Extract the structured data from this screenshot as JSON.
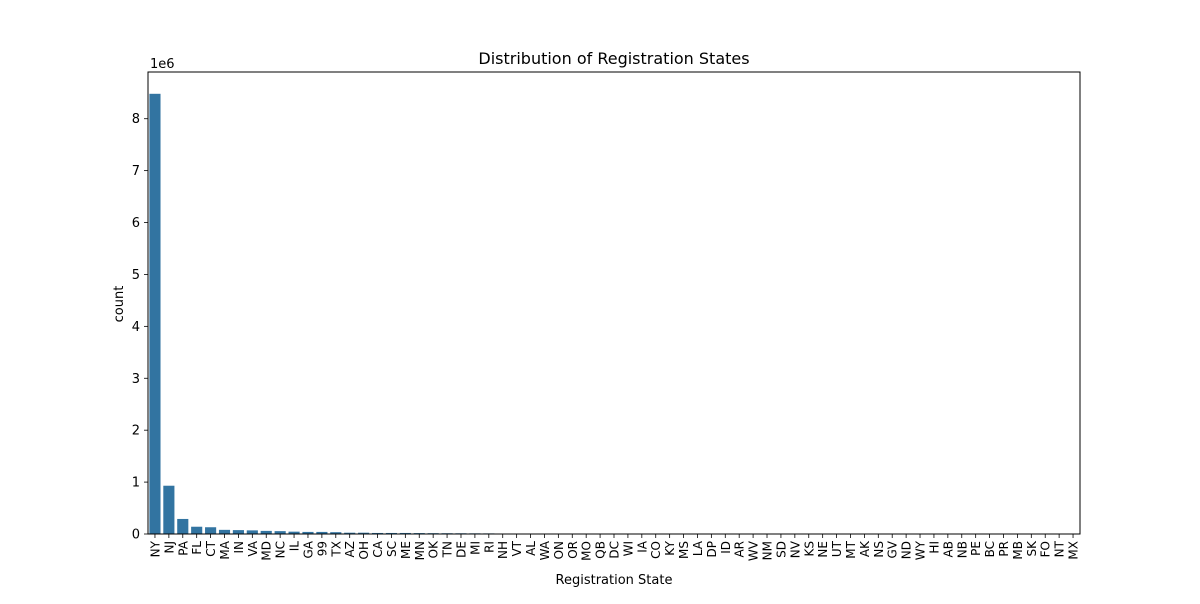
{
  "chart_data": {
    "type": "bar",
    "title": "Distribution of Registration States",
    "xlabel": "Registration State",
    "ylabel": "count",
    "y_multiplier_label": "1e6",
    "ylim": [
      0,
      8.9
    ],
    "yticks": [
      0,
      1,
      2,
      3,
      4,
      5,
      6,
      7,
      8
    ],
    "grid": false,
    "legend": "none",
    "bar_color": "#3274a1",
    "categories": [
      "NY",
      "NJ",
      "PA",
      "FL",
      "CT",
      "MA",
      "IN",
      "VA",
      "MD",
      "NC",
      "IL",
      "GA",
      "99",
      "TX",
      "AZ",
      "OH",
      "CA",
      "SC",
      "ME",
      "MN",
      "OK",
      "TN",
      "DE",
      "MI",
      "RI",
      "NH",
      "VT",
      "AL",
      "WA",
      "ON",
      "OR",
      "MO",
      "QB",
      "DC",
      "WI",
      "IA",
      "CO",
      "KY",
      "MS",
      "LA",
      "DP",
      "ID",
      "AR",
      "WV",
      "NM",
      "SD",
      "NV",
      "KS",
      "NE",
      "UT",
      "MT",
      "AK",
      "NS",
      "GV",
      "ND",
      "WY",
      "HI",
      "AB",
      "NB",
      "PE",
      "BC",
      "PR",
      "MB",
      "SK",
      "FO",
      "NT",
      "MX"
    ],
    "values": [
      8.48,
      0.93,
      0.29,
      0.14,
      0.13,
      0.08,
      0.075,
      0.07,
      0.06,
      0.055,
      0.045,
      0.04,
      0.04,
      0.035,
      0.025,
      0.025,
      0.02,
      0.02,
      0.02,
      0.018,
      0.016,
      0.015,
      0.014,
      0.013,
      0.012,
      0.008,
      0.007,
      0.006,
      0.005,
      0.005,
      0.004,
      0.004,
      0.003,
      0.003,
      0.003,
      0.002,
      0.002,
      0.002,
      0.002,
      0.002,
      0.001,
      0.001,
      0.001,
      0.001,
      0.001,
      0.001,
      0.001,
      0.001,
      0.001,
      0.001,
      0.0005,
      0.0005,
      0.0005,
      0.0005,
      0.0005,
      0.0005,
      0.0005,
      0.0003,
      0.0003,
      0.0003,
      0.0003,
      0.0002,
      0.0002,
      0.0002,
      0.0001,
      0.0001,
      0.0001
    ]
  }
}
